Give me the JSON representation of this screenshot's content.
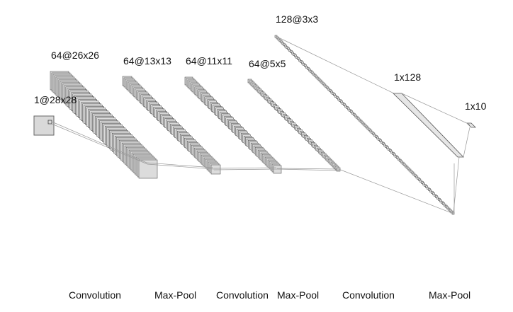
{
  "layers": [
    {
      "label": "1@28x28"
    },
    {
      "label": "64@26x26"
    },
    {
      "label": "64@13x13"
    },
    {
      "label": "64@11x11"
    },
    {
      "label": "64@5x5"
    },
    {
      "label": "128@3x3"
    },
    {
      "label": "1x128"
    },
    {
      "label": "1x10"
    }
  ],
  "operations": [
    {
      "label": "Convolution"
    },
    {
      "label": "Max-Pool"
    },
    {
      "label": "Convolution"
    },
    {
      "label": "Max-Pool"
    },
    {
      "label": "Convolution"
    },
    {
      "label": "Max-Pool"
    }
  ],
  "colors": {
    "map_fill": "#dcdcdc",
    "map_stroke": "#555555",
    "connector": "#999999",
    "background": "#ffffff"
  }
}
